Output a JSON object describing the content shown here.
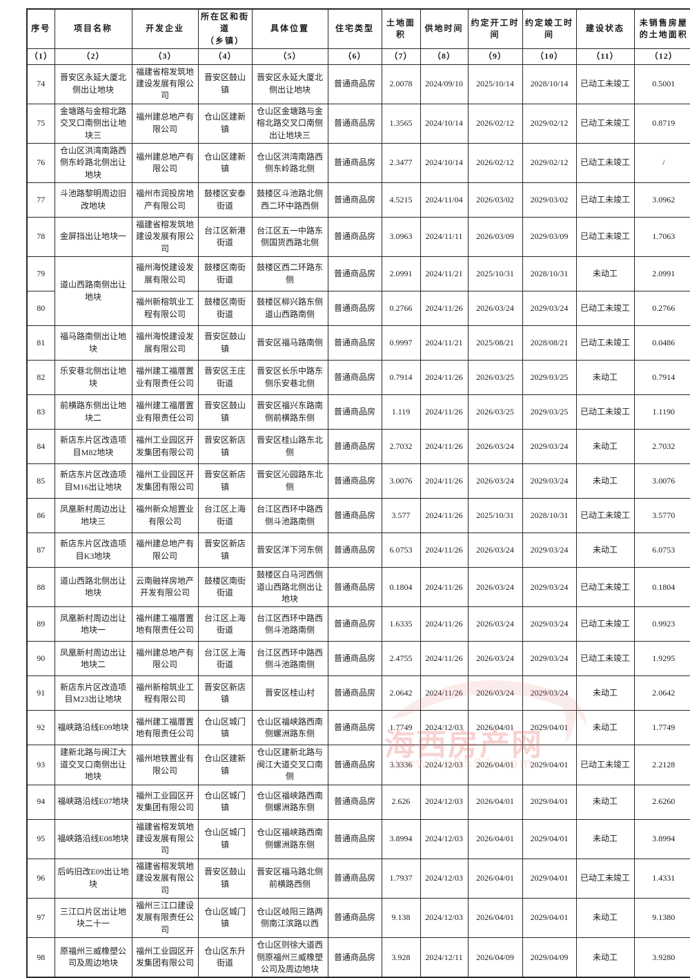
{
  "watermark": {
    "title": "海西房产网",
    "url": "www.hx0591.com"
  },
  "table": {
    "columns": [
      {
        "key": "no",
        "label": "序号",
        "index": "（1）"
      },
      {
        "key": "project",
        "label": "项目名称",
        "index": "（2）"
      },
      {
        "key": "developer",
        "label": "开发企业",
        "index": "（3）"
      },
      {
        "key": "district",
        "label": "所在区和街道\n（乡镇）",
        "index": "（4）"
      },
      {
        "key": "location",
        "label": "具体位置",
        "index": "（5）"
      },
      {
        "key": "type",
        "label": "住宅类型",
        "index": "（6）"
      },
      {
        "key": "area",
        "label": "土地面积",
        "index": "（7）"
      },
      {
        "key": "supply",
        "label": "供地时间",
        "index": "（8）"
      },
      {
        "key": "start",
        "label": "约定开工时间",
        "index": "（9）"
      },
      {
        "key": "finish",
        "label": "约定竣工时间",
        "index": "（10）"
      },
      {
        "key": "status",
        "label": "建设状态",
        "index": "（11）"
      },
      {
        "key": "unsold",
        "label": "未销售房屋\n的土地面积",
        "index": "（12）"
      }
    ],
    "rows": [
      {
        "no": "74",
        "project": "晋安区永延大厦北侧出让地块",
        "developer": "福建省榕发筑地建设发展有限公司",
        "district": "晋安区鼓山镇",
        "location": "晋安区永延大厦北侧出让地块",
        "type": "普通商品房",
        "area": "2.0078",
        "supply": "2024/09/10",
        "start": "2025/10/14",
        "finish": "2028/10/14",
        "status": "已动工未竣工",
        "unsold": "0.5001"
      },
      {
        "no": "75",
        "project": "金塘路与金榕北路交叉口南侧出让地块三",
        "developer": "福州建总地产有限公司",
        "district": "仓山区建新镇",
        "location": "仓山区金塘路与金榕北路交叉口南侧出让地块三",
        "type": "普通商品房",
        "area": "1.3565",
        "supply": "2024/10/14",
        "start": "2026/02/12",
        "finish": "2029/02/12",
        "status": "已动工未竣工",
        "unsold": "0.8719"
      },
      {
        "no": "76",
        "project": "仓山区洪湾南路西侧东岭路北侧出让地块",
        "developer": "福州建总地产有限公司",
        "district": "仓山区建新镇",
        "location": "仓山区洪湾南路西侧东岭路北侧",
        "type": "普通商品房",
        "area": "2.3477",
        "supply": "2024/10/14",
        "start": "2026/02/12",
        "finish": "2029/02/12",
        "status": "已动工未竣工",
        "unsold": "/"
      },
      {
        "no": "77",
        "project": "斗池路黎明周边旧改地块",
        "developer": "福州市润投房地产有限公司",
        "district": "鼓楼区安泰街道",
        "location": "鼓楼区斗池路北侧西二环中路西侧",
        "type": "普通商品房",
        "area": "4.5215",
        "supply": "2024/11/04",
        "start": "2026/03/02",
        "finish": "2029/03/02",
        "status": "已动工未竣工",
        "unsold": "3.0962"
      },
      {
        "no": "78",
        "project": "金屏挡出让地块一",
        "developer": "福建省榕发筑地建设发展有限公司",
        "district": "台江区新港街道",
        "location": "台江区五一中路东侧国货西路北侧",
        "type": "普通商品房",
        "area": "3.0963",
        "supply": "2024/11/11",
        "start": "2026/03/09",
        "finish": "2029/03/09",
        "status": "已动工未竣工",
        "unsold": "1.7063"
      },
      {
        "no": "79",
        "project": "道山西路南侧出让地块",
        "project_rowspan": 2,
        "developer": "福州海悦建设发展有限公司",
        "district": "鼓楼区南街街道",
        "location": "鼓楼区西二环路东侧",
        "type": "普通商品房",
        "area": "2.0991",
        "supply": "2024/11/21",
        "start": "2025/10/31",
        "finish": "2028/10/31",
        "status": "未动工",
        "unsold": "2.0991"
      },
      {
        "no": "80",
        "project": null,
        "developer": "福州新榕筑业工程有限公司",
        "district": "鼓楼区南街街道",
        "location": "鼓楼区柳兴路东侧道山西路南侧",
        "type": "普通商品房",
        "area": "0.2766",
        "supply": "2024/11/26",
        "start": "2026/03/24",
        "finish": "2029/03/24",
        "status": "已动工未竣工",
        "unsold": "0.2766"
      },
      {
        "no": "81",
        "project": "福马路南侧出让地块",
        "developer": "福州海悦建设发展有限公司",
        "district": "晋安区鼓山镇",
        "location": "晋安区福马路南侧",
        "type": "普通商品房",
        "area": "0.9997",
        "supply": "2024/11/21",
        "start": "2025/08/21",
        "finish": "2028/08/21",
        "status": "已动工未竣工",
        "unsold": "0.0486"
      },
      {
        "no": "82",
        "project": "乐安巷北侧出让地块",
        "developer": "福州建工福厝置业有限责任公司",
        "district": "晋安区王庄街道",
        "location": "晋安区长乐中路东侧乐安巷北侧",
        "type": "普通商品房",
        "area": "0.7914",
        "supply": "2024/11/26",
        "start": "2026/03/25",
        "finish": "2029/03/25",
        "status": "未动工",
        "unsold": "0.7914"
      },
      {
        "no": "83",
        "project": "前横路东侧出让地块二",
        "developer": "福州建工福厝置业有限责任公司",
        "district": "晋安区鼓山镇",
        "location": "晋安区福兴东路南侧前横路东侧",
        "type": "普通商品房",
        "area": "1.119",
        "supply": "2024/11/26",
        "start": "2026/03/25",
        "finish": "2029/03/25",
        "status": "已动工未竣工",
        "unsold": "1.1190"
      },
      {
        "no": "84",
        "project": "新店东片区改造项目M82地块",
        "developer": "福州工业园区开发集团有限公司",
        "district": "晋安区新店镇",
        "location": "晋安区桂山路东北侧",
        "type": "普通商品房",
        "area": "2.7032",
        "supply": "2024/11/26",
        "start": "2026/03/24",
        "finish": "2029/03/24",
        "status": "未动工",
        "unsold": "2.7032"
      },
      {
        "no": "85",
        "project": "新店东片区改造项目M16出让地块",
        "developer": "福州工业园区开发集团有限公司",
        "district": "晋安区新店镇",
        "location": "晋安区沁园路东北侧",
        "type": "普通商品房",
        "area": "3.0076",
        "supply": "2024/11/26",
        "start": "2026/03/24",
        "finish": "2029/03/24",
        "status": "未动工",
        "unsold": "3.0076"
      },
      {
        "no": "86",
        "project": "凤凰新村周边出让地块三",
        "developer": "福州新众旭置业有限公司",
        "district": "台江区上海街道",
        "location": "台江区西环中路西侧斗池路南侧",
        "type": "普通商品房",
        "area": "3.577",
        "supply": "2024/11/26",
        "start": "2025/10/31",
        "finish": "2028/10/31",
        "status": "已动工未竣工",
        "unsold": "3.5770"
      },
      {
        "no": "87",
        "project": "新店东片区改造项目K3地块",
        "developer": "福州建总地产有限公司",
        "district": "晋安区新店镇",
        "location": "晋安区洋下河东侧",
        "type": "普通商品房",
        "area": "6.0753",
        "supply": "2024/11/26",
        "start": "2026/03/24",
        "finish": "2029/03/24",
        "status": "未动工",
        "unsold": "6.0753"
      },
      {
        "no": "88",
        "project": "道山西路北侧出让地块",
        "developer": "云南融祥房地产开发有限公司",
        "district": "鼓楼区南街街道",
        "location": "鼓楼区白马河西侧道山西路北侧出让地块",
        "type": "普通商品房",
        "area": "0.1804",
        "supply": "2024/11/26",
        "start": "2026/03/24",
        "finish": "2029/03/24",
        "status": "已动工未竣工",
        "unsold": "0.1804"
      },
      {
        "no": "89",
        "project": "凤凰新村周边出让地块一",
        "developer": "福州建工福厝置地有限责任公司",
        "district": "台江区上海街道",
        "location": "台江区西环中路西侧斗池路南侧",
        "type": "普通商品房",
        "area": "1.6335",
        "supply": "2024/11/26",
        "start": "2026/03/24",
        "finish": "2029/03/24",
        "status": "已动工未竣工",
        "unsold": "0.9923"
      },
      {
        "no": "90",
        "project": "凤凰新村周边出让地块二",
        "developer": "福州建总地产有限公司",
        "district": "台江区上海街道",
        "location": "台江区西环中路西侧斗池路南侧",
        "type": "普通商品房",
        "area": "2.4755",
        "supply": "2024/11/26",
        "start": "2026/03/24",
        "finish": "2029/03/24",
        "status": "已动工未竣工",
        "unsold": "1.9295"
      },
      {
        "no": "91",
        "project": "新店东片区改造项目M23出让地块",
        "developer": "福州新榕筑业工程有限公司",
        "district": "晋安区新店镇",
        "location": "晋安区桂山村",
        "type": "普通商品房",
        "area": "2.0642",
        "supply": "2024/11/26",
        "start": "2026/03/24",
        "finish": "2029/03/24",
        "status": "未动工",
        "unsold": "2.0642"
      },
      {
        "no": "92",
        "project": "福峡路沿线E09地块",
        "developer": "福州建工福厝置地有限责任公司",
        "district": "仓山区城门镇",
        "location": "仓山区福峡路西南侧螺洲路东侧",
        "type": "普通商品房",
        "area": "1.7749",
        "supply": "2024/12/03",
        "start": "2026/04/01",
        "finish": "2029/04/01",
        "status": "未动工",
        "unsold": "1.7749"
      },
      {
        "no": "93",
        "project": "建新北路与闽江大道交叉口南侧出让地块",
        "developer": "福州地铁置业有限公司",
        "district": "仓山区建新镇",
        "location": "仓山区建新北路与闽江大道交叉口南侧",
        "type": "普通商品房",
        "area": "3.3336",
        "supply": "2024/12/03",
        "start": "2026/04/01",
        "finish": "2029/04/01",
        "status": "已动工未竣工",
        "unsold": "2.2128"
      },
      {
        "no": "94",
        "project": "福峡路沿线E07地块",
        "developer": "福州工业园区开发集团有限公司",
        "district": "仓山区城门镇",
        "location": "仓山区福峡路西南侧螺洲路东侧",
        "type": "普通商品房",
        "area": "2.626",
        "supply": "2024/12/03",
        "start": "2026/04/01",
        "finish": "2029/04/01",
        "status": "未动工",
        "unsold": "2.6260"
      },
      {
        "no": "95",
        "project": "福峡路沿线E08地块",
        "developer": "福建省榕发筑地建设发展有限公司",
        "district": "仓山区城门镇",
        "location": "仓山区福峡路西南侧螺洲路东侧",
        "type": "普通商品房",
        "area": "3.8994",
        "supply": "2024/12/03",
        "start": "2026/04/01",
        "finish": "2029/04/01",
        "status": "未动工",
        "unsold": "3.8994"
      },
      {
        "no": "96",
        "project": "后屿旧改E09出让地块",
        "developer": "福建省榕发筑地建设发展有限公司",
        "district": "晋安区鼓山镇",
        "location": "晋安区福马路北侧前横路西侧",
        "type": "普通商品房",
        "area": "1.7937",
        "supply": "2024/12/03",
        "start": "2026/04/01",
        "finish": "2029/04/01",
        "status": "已动工未竣工",
        "unsold": "1.4331"
      },
      {
        "no": "97",
        "project": "三江口片区出让地块二十一",
        "developer": "福州三江口建设发展有限责任公司",
        "district": "仓山区城门镇",
        "location": "仓山区岐阳三路两侧南江滨路以西",
        "type": "普通商品房",
        "area": "9.138",
        "supply": "2024/12/03",
        "start": "2026/04/01",
        "finish": "2029/04/01",
        "status": "未动工",
        "unsold": "9.1380"
      },
      {
        "no": "98",
        "project": "原福州三威橡塑公司及周边地块",
        "developer": "福州工业园区开发集团有限公司",
        "district": "仓山区东升街道",
        "location": "仓山区则徐大道西侧原福州三威橡塑公司及周边地块",
        "type": "普通商品房",
        "area": "3.928",
        "supply": "2024/12/11",
        "start": "2026/04/09",
        "finish": "2029/04/09",
        "status": "未动工",
        "unsold": "3.9280"
      }
    ]
  }
}
